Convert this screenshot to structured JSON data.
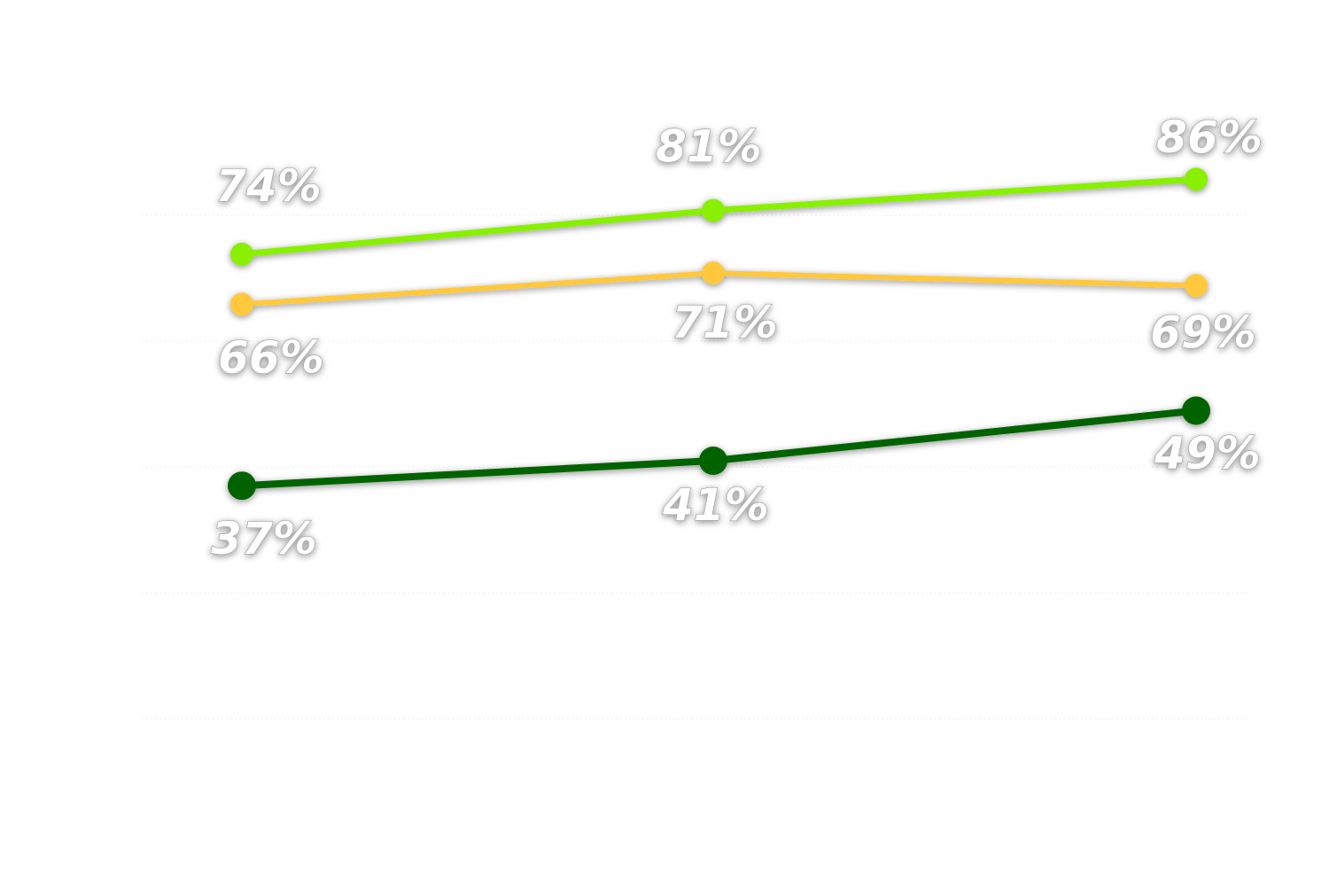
{
  "chart_data": {
    "type": "line",
    "title": "",
    "xlabel": "",
    "ylabel": "",
    "categories": [
      "",
      "",
      ""
    ],
    "ylim": [
      0,
      100
    ],
    "grid": true,
    "series": [
      {
        "color": "#88f000",
        "values": [
          74,
          81,
          86
        ],
        "labels": [
          "74%",
          "81%",
          "86%"
        ]
      },
      {
        "color": "#ffc83c",
        "values": [
          66,
          71,
          69
        ],
        "labels": [
          "66%",
          "71%",
          "69%"
        ]
      },
      {
        "color": "#006400",
        "values": [
          37,
          41,
          49
        ],
        "labels": [
          "37%",
          "41%",
          "49%"
        ]
      }
    ]
  }
}
